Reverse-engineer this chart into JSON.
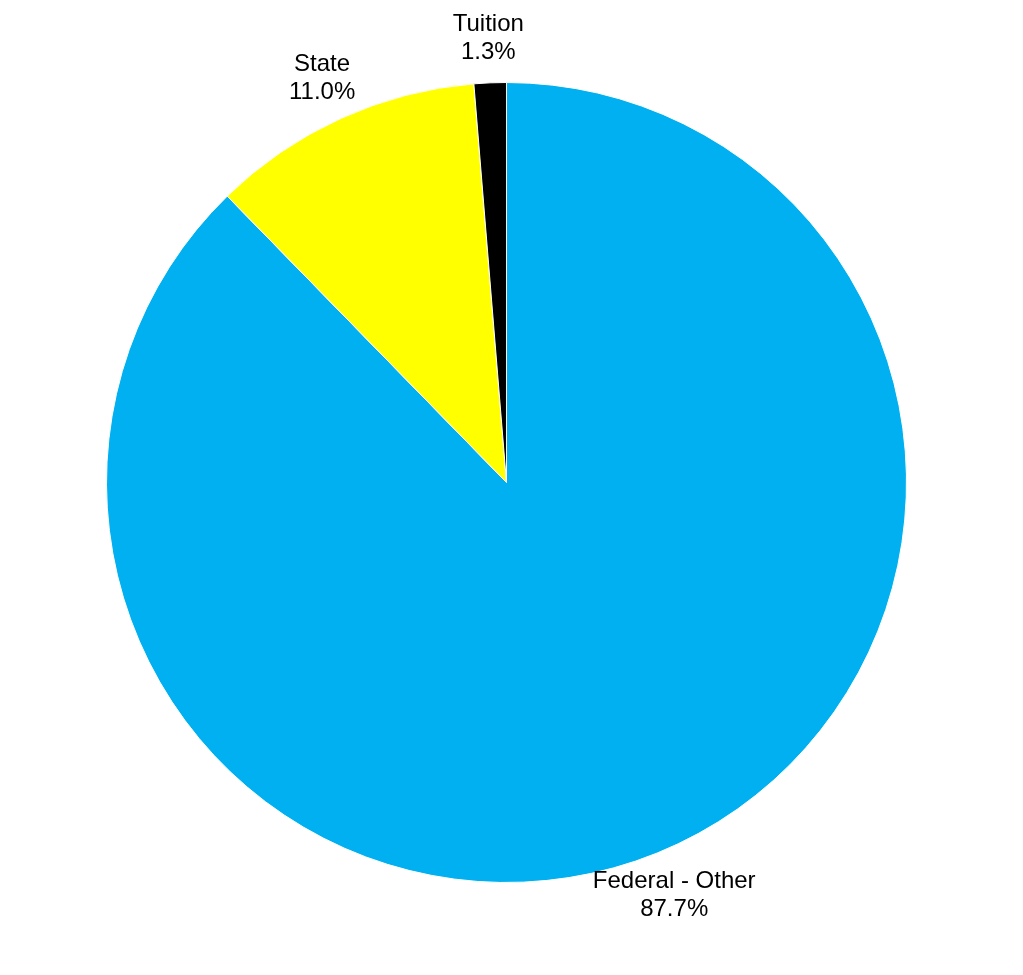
{
  "chart_data": {
    "type": "pie",
    "categories": [
      "Federal - Other",
      "State",
      "Tuition"
    ],
    "values": [
      87.7,
      11.0,
      1.3
    ],
    "value_labels": [
      "87.7%",
      "11.0%",
      "1.3%"
    ],
    "colors": [
      "#00b0f0",
      "#ffff00",
      "#000000"
    ],
    "legend": false
  }
}
